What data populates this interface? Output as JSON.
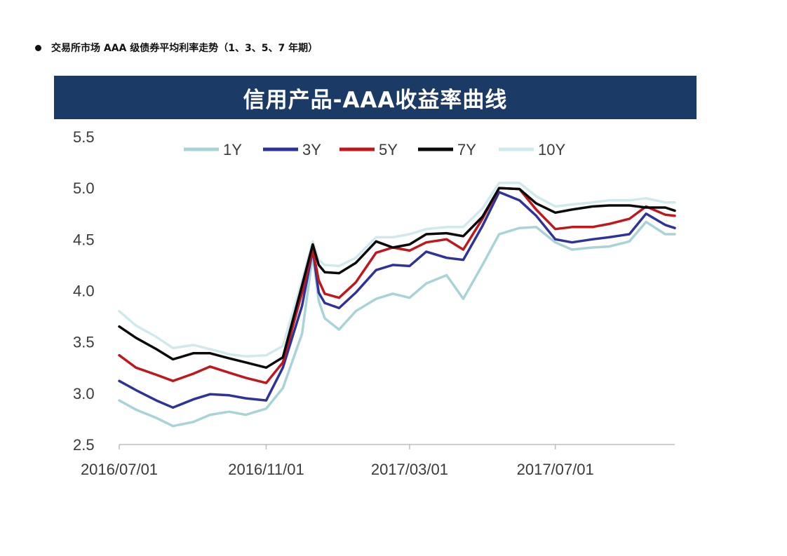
{
  "document": {
    "heading": "交易所市场 AAA 级债券平均利率走势（1、3、5、7 年期）"
  },
  "chart_data": {
    "type": "line",
    "title": "信用产品-AAA收益率曲线",
    "xlabel": "",
    "ylabel": "",
    "ylim": [
      2.5,
      5.5
    ],
    "y_ticks": [
      "2.5",
      "3.0",
      "3.5",
      "4.0",
      "4.5",
      "5.0",
      "5.5"
    ],
    "x_ticks": [
      "2016/07/01",
      "2016/11/01",
      "2017/03/01",
      "2017/07/01"
    ],
    "x_range": [
      "2016/07/01",
      "2017/10/09"
    ],
    "grid": false,
    "legend_position": "top",
    "x": [
      "2016/07/01",
      "2016/07/15",
      "2016/08/01",
      "2016/08/15",
      "2016/09/01",
      "2016/09/15",
      "2016/10/01",
      "2016/10/15",
      "2016/11/01",
      "2016/11/15",
      "2016/12/01",
      "2016/12/10",
      "2016/12/15",
      "2016/12/20",
      "2017/01/01",
      "2017/01/15",
      "2017/02/01",
      "2017/02/15",
      "2017/03/01",
      "2017/03/15",
      "2017/04/01",
      "2017/04/15",
      "2017/05/01",
      "2017/05/15",
      "2017/06/01",
      "2017/06/15",
      "2017/07/01",
      "2017/07/15",
      "2017/08/01",
      "2017/08/15",
      "2017/09/01",
      "2017/09/15",
      "2017/10/01",
      "2017/10/09"
    ],
    "series": [
      {
        "name": "1Y",
        "color": "#a9d3d6",
        "values": [
          2.93,
          2.84,
          2.76,
          2.68,
          2.72,
          2.79,
          2.82,
          2.79,
          2.85,
          3.05,
          3.58,
          4.35,
          3.9,
          3.73,
          3.62,
          3.8,
          3.92,
          3.97,
          3.93,
          4.07,
          4.15,
          3.92,
          4.25,
          4.55,
          4.61,
          4.62,
          4.47,
          4.4,
          4.42,
          4.43,
          4.48,
          4.67,
          4.55,
          4.55
        ]
      },
      {
        "name": "3Y",
        "color": "#2e3399",
        "values": [
          3.12,
          3.03,
          2.93,
          2.86,
          2.94,
          2.99,
          2.98,
          2.95,
          2.93,
          3.25,
          3.85,
          4.4,
          3.98,
          3.88,
          3.83,
          3.98,
          4.2,
          4.25,
          4.24,
          4.38,
          4.32,
          4.3,
          4.63,
          4.96,
          4.88,
          4.73,
          4.5,
          4.47,
          4.5,
          4.52,
          4.55,
          4.75,
          4.64,
          4.61
        ]
      },
      {
        "name": "5Y",
        "color": "#c0171c",
        "values": [
          3.37,
          3.25,
          3.18,
          3.12,
          3.19,
          3.26,
          3.2,
          3.15,
          3.1,
          3.3,
          3.98,
          4.4,
          4.1,
          3.97,
          3.93,
          4.08,
          4.37,
          4.42,
          4.39,
          4.47,
          4.5,
          4.4,
          4.7,
          5.0,
          4.99,
          4.79,
          4.6,
          4.62,
          4.62,
          4.65,
          4.7,
          4.82,
          4.74,
          4.73
        ]
      },
      {
        "name": "7Y",
        "color": "#0a0a0a",
        "values": [
          3.65,
          3.54,
          3.43,
          3.33,
          3.39,
          3.39,
          3.34,
          3.3,
          3.25,
          3.35,
          4.05,
          4.45,
          4.25,
          4.18,
          4.17,
          4.27,
          4.48,
          4.42,
          4.45,
          4.55,
          4.56,
          4.53,
          4.72,
          5.0,
          4.99,
          4.85,
          4.76,
          4.79,
          4.82,
          4.83,
          4.83,
          4.81,
          4.81,
          4.78
        ]
      },
      {
        "name": "10Y",
        "color": "#d0e9ec",
        "values": [
          3.8,
          3.66,
          3.55,
          3.44,
          3.47,
          3.43,
          3.38,
          3.36,
          3.37,
          3.46,
          4.1,
          4.48,
          4.3,
          4.25,
          4.24,
          4.32,
          4.52,
          4.52,
          4.55,
          4.6,
          4.62,
          4.62,
          4.8,
          5.05,
          5.05,
          4.92,
          4.82,
          4.84,
          4.86,
          4.88,
          4.88,
          4.9,
          4.86,
          4.86
        ]
      }
    ]
  }
}
